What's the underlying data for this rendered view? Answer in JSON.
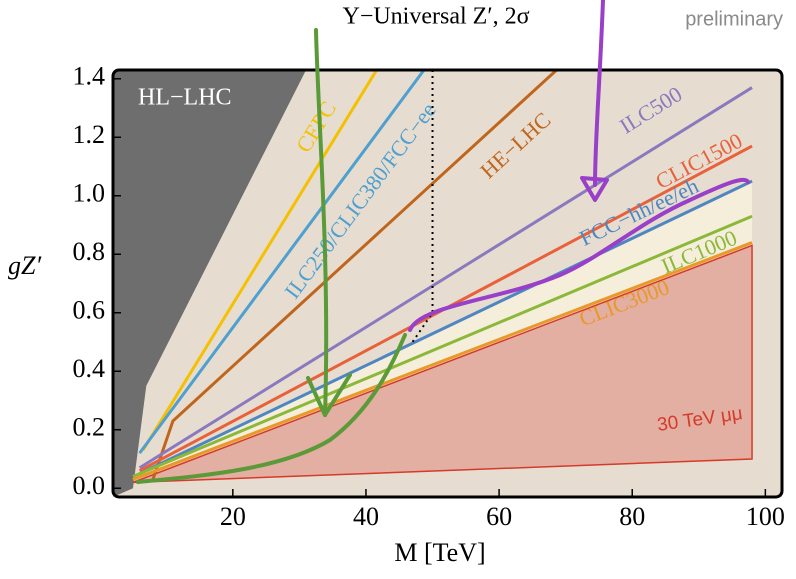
{
  "chart_data": {
    "type": "line",
    "title": "Y−Universal Z′, 2σ",
    "note": "preliminary",
    "x_label": "M [TeV]",
    "y_label": "gZ′",
    "xlim": [
      2,
      102.5
    ],
    "ylim": [
      -0.03,
      1.43
    ],
    "xticks": [
      20,
      40,
      60,
      80,
      100
    ],
    "yticks": [
      {
        "value": 0,
        "label": "0.0"
      },
      0.2,
      0.4,
      0.6,
      0.8,
      {
        "value": 1,
        "label": "1.0"
      },
      1.2,
      1.4
    ],
    "excluded_region": {
      "name": "HL−LHC",
      "color": "#6e6e6e",
      "x": [
        2,
        5,
        7,
        31,
        2
      ],
      "values": [
        -0.03,
        0.0,
        0.35,
        1.43,
        1.43
      ]
    },
    "series": [
      {
        "name": "CEPC",
        "color": "#f5c000",
        "x": [
          6.5,
          43.5
        ],
        "values": [
          0.13,
          1.5
        ]
      },
      {
        "name": "ILC250/CLIC380/FCC−ee",
        "color": "#4f9fcf",
        "x": [
          6,
          51
        ],
        "values": [
          0.12,
          1.5
        ]
      },
      {
        "name": "HE−LHC",
        "color": "#c0661c",
        "x": [
          8,
          11,
          72
        ],
        "values": [
          0.03,
          0.23,
          1.5
        ]
      },
      {
        "name": "ILC500",
        "color": "#8b79bf",
        "x": [
          6,
          98
        ],
        "values": [
          0.07,
          1.37
        ]
      },
      {
        "name": "CLIC1500",
        "color": "#e8613a",
        "x": [
          6,
          98
        ],
        "values": [
          0.06,
          1.17
        ]
      },
      {
        "name": "FCC−hh/ee/eh",
        "color": "#4f86c2",
        "x": [
          6,
          98
        ],
        "values": [
          0.05,
          1.05
        ]
      },
      {
        "name": "ILC1000",
        "color": "#8cb83a",
        "x": [
          5,
          98
        ],
        "values": [
          0.04,
          0.93
        ]
      },
      {
        "name": "CLIC3000",
        "color": "#e8992a",
        "x": [
          5,
          98
        ],
        "values": [
          0.03,
          0.84
        ]
      }
    ],
    "muon_region": {
      "name": "30 TeV μμ",
      "color": "#d63a2a",
      "x": [
        5,
        98,
        98,
        5
      ],
      "values": [
        0.02,
        0.83,
        0.1,
        0.02
      ]
    },
    "dotted": {
      "x": [
        50,
        50,
        47
      ],
      "values": [
        1.43,
        0.6,
        0.5
      ]
    }
  }
}
